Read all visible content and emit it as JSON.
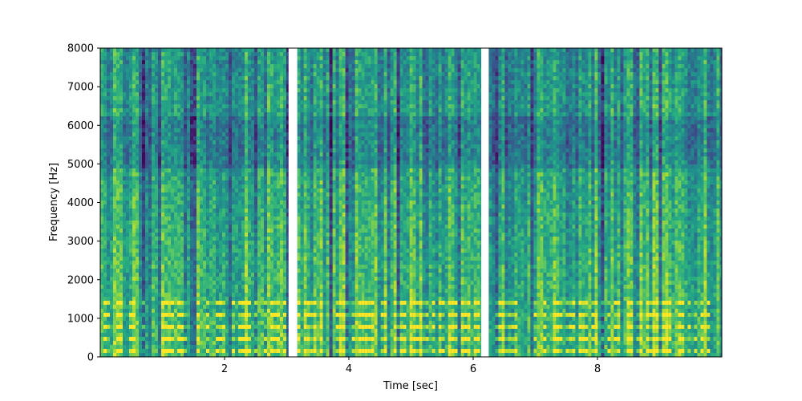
{
  "chart_data": {
    "type": "heatmap",
    "subtype": "spectrogram",
    "title": "",
    "xlabel": "Time [sec]",
    "ylabel": "Frequency [Hz]",
    "xlim": [
      0.0,
      10.0
    ],
    "ylim": [
      0,
      8000
    ],
    "x_ticks": [
      2,
      4,
      6,
      8
    ],
    "x_tick_labels": [
      "2",
      "4",
      "6",
      "8"
    ],
    "y_ticks": [
      0,
      1000,
      2000,
      3000,
      4000,
      5000,
      6000,
      7000,
      8000
    ],
    "y_tick_labels": [
      "0",
      "1000",
      "2000",
      "3000",
      "4000",
      "5000",
      "6000",
      "7000",
      "8000"
    ],
    "colormap": "viridis",
    "segments": [
      {
        "start_sec": 0.0,
        "end_sec": 3.03
      },
      {
        "start_sec": 3.17,
        "end_sec": 6.13
      },
      {
        "start_sec": 6.25,
        "end_sec": 10.0
      }
    ],
    "gaps": [
      {
        "start_sec": 3.03,
        "end_sec": 3.17
      },
      {
        "start_sec": 6.13,
        "end_sec": 6.25
      }
    ],
    "grid": false,
    "legend": "none"
  }
}
